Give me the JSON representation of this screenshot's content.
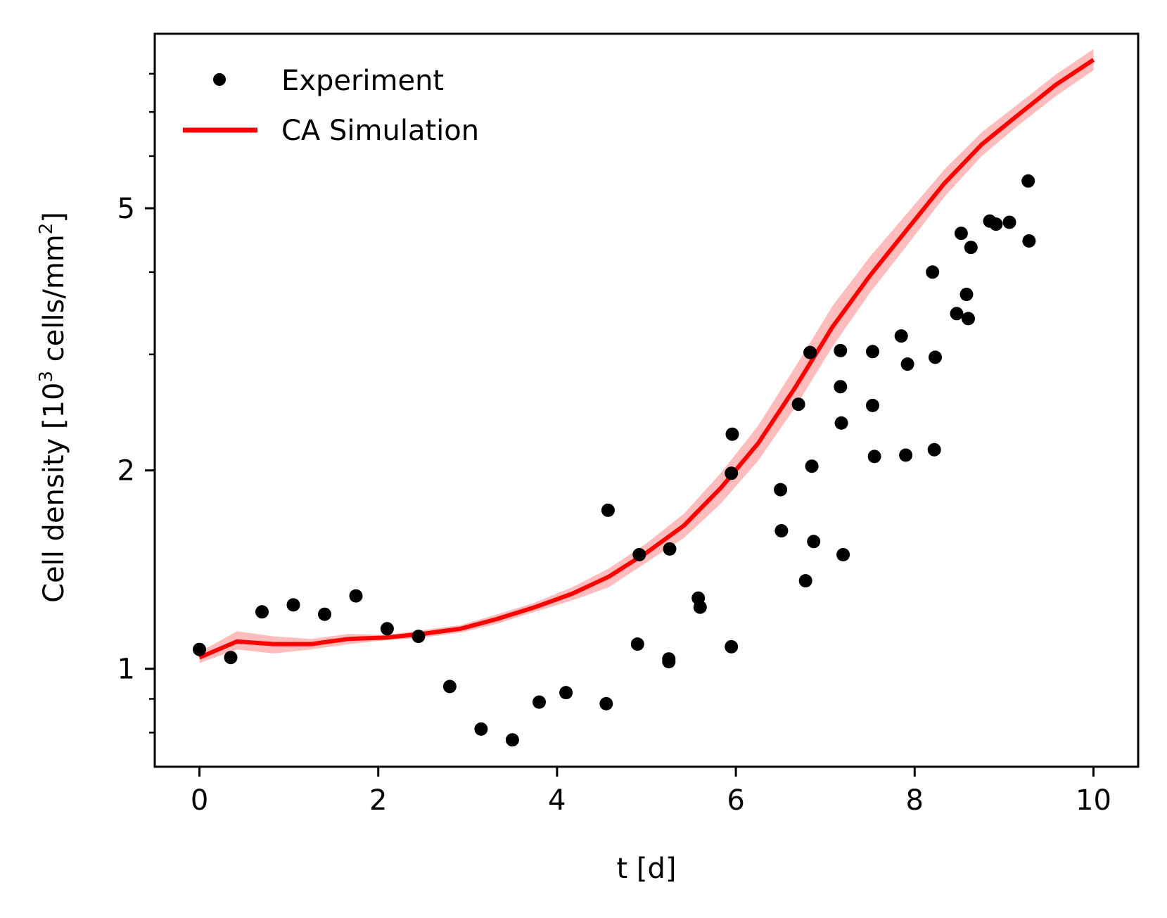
{
  "chart_data": {
    "type": "scatter",
    "title": "",
    "xlabel": "t [d]",
    "ylabel": "Cell density [10³ cells/mm²]",
    "ylabel_parts": {
      "pre": "Cell density [10",
      "sup1": "3",
      "mid": " cells/mm",
      "sup2": "2",
      "post": "]"
    },
    "yscale": "log",
    "xlim": [
      -0.5,
      10.5
    ],
    "ylim": [
      0.71,
      9.2
    ],
    "xticks": [
      0,
      2,
      4,
      6,
      8,
      10
    ],
    "xtick_labels": [
      "0",
      "2",
      "4",
      "6",
      "8",
      "10"
    ],
    "yticks": [
      1,
      2,
      5
    ],
    "ytick_labels": [
      "1",
      "2",
      "5"
    ],
    "yminor_ticks": [
      0.8,
      0.9,
      3,
      4,
      6,
      7,
      8
    ],
    "legend_position": "top-left",
    "series": [
      {
        "name": "Experiment",
        "kind": "scatter",
        "color": "#000000",
        "x": [
          0,
          0.35,
          0.7,
          1.05,
          1.4,
          1.75,
          2.1,
          2.45,
          2.8,
          3.15,
          3.5,
          3.8,
          4.1,
          4.55,
          4.57,
          4.9,
          4.92,
          5.25,
          5.25,
          5.26,
          5.58,
          5.6,
          5.95,
          5.95,
          5.96,
          6.5,
          6.51,
          6.7,
          6.78,
          6.83,
          6.85,
          6.87,
          7.17,
          7.17,
          7.18,
          7.2,
          7.53,
          7.53,
          7.55,
          7.85,
          7.9,
          7.92,
          8.2,
          8.22,
          8.23,
          8.47,
          8.52,
          8.58,
          8.6,
          8.63,
          8.84,
          8.91,
          9.06,
          9.27,
          9.28
        ],
        "y": [
          1.07,
          1.04,
          1.22,
          1.25,
          1.21,
          1.29,
          1.15,
          1.12,
          0.94,
          0.81,
          0.78,
          0.89,
          0.92,
          0.885,
          1.74,
          1.09,
          1.49,
          1.035,
          1.025,
          1.52,
          1.28,
          1.24,
          1.08,
          1.98,
          2.27,
          1.87,
          1.62,
          2.52,
          1.36,
          3.02,
          2.03,
          1.56,
          3.04,
          2.68,
          2.36,
          1.49,
          3.03,
          2.51,
          2.1,
          3.2,
          2.11,
          2.9,
          4.0,
          2.15,
          2.97,
          3.46,
          4.58,
          3.7,
          3.4,
          4.36,
          4.78,
          4.73,
          4.76,
          5.5,
          4.46
        ]
      },
      {
        "name": "CA Simulation",
        "kind": "line",
        "color": "#ff0000",
        "band_color": "#ffbcbc",
        "x": [
          0,
          0.42,
          0.83,
          1.25,
          1.67,
          2.08,
          2.5,
          2.92,
          3.33,
          3.75,
          4.17,
          4.58,
          5.0,
          5.42,
          5.83,
          6.25,
          6.67,
          7.08,
          7.5,
          7.92,
          8.33,
          8.75,
          9.17,
          9.58,
          10.0
        ],
        "y": [
          1.04,
          1.1,
          1.09,
          1.09,
          1.11,
          1.115,
          1.13,
          1.15,
          1.19,
          1.24,
          1.3,
          1.38,
          1.5,
          1.65,
          1.88,
          2.2,
          2.68,
          3.3,
          3.95,
          4.65,
          5.45,
          6.25,
          6.95,
          7.7,
          8.4
        ],
        "y_lower": [
          1.02,
          1.07,
          1.055,
          1.07,
          1.09,
          1.105,
          1.115,
          1.135,
          1.17,
          1.22,
          1.27,
          1.33,
          1.45,
          1.58,
          1.78,
          2.07,
          2.5,
          3.08,
          3.72,
          4.4,
          5.2,
          6.0,
          6.7,
          7.4,
          8.1
        ],
        "y_upper": [
          1.06,
          1.14,
          1.12,
          1.11,
          1.13,
          1.125,
          1.145,
          1.165,
          1.21,
          1.26,
          1.33,
          1.42,
          1.55,
          1.72,
          1.98,
          2.34,
          2.88,
          3.55,
          4.22,
          4.92,
          5.72,
          6.52,
          7.22,
          7.98,
          8.72
        ]
      }
    ]
  }
}
